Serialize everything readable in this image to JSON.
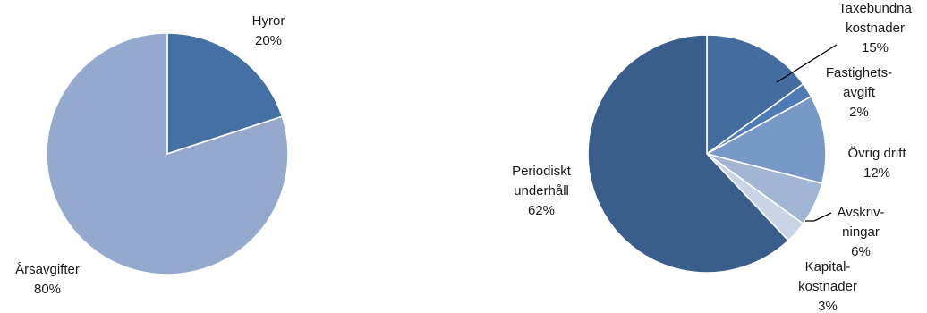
{
  "chart_data": [
    {
      "type": "pie",
      "title": "",
      "slices": [
        {
          "label": [
            "Hyror",
            "20%"
          ],
          "value": 20,
          "color": "#4470a3"
        },
        {
          "label": [
            "Årsavgifter",
            "80%"
          ],
          "value": 80,
          "color": "#95a9cf"
        }
      ]
    },
    {
      "type": "pie",
      "title": "",
      "slices": [
        {
          "label": [
            "Taxebundna",
            "kostnader",
            "15%"
          ],
          "value": 15,
          "color": "#436c9f"
        },
        {
          "label": [
            "Fastighets-",
            "avgift",
            "2%"
          ],
          "value": 2,
          "color": "#4e7bb6"
        },
        {
          "label": [
            "Övrig drift",
            "12%"
          ],
          "value": 12,
          "color": "#7898c8"
        },
        {
          "label": [
            "Avskriv-",
            "ningar",
            "6%"
          ],
          "value": 6,
          "color": "#a3b5d5"
        },
        {
          "label": [
            "Kapital-",
            "kostnader",
            "3%"
          ],
          "value": 3,
          "color": "#c9d3e6"
        },
        {
          "label": [
            "Periodiskt",
            "underhåll",
            "62%"
          ],
          "value": 62,
          "color": "#3a5e8c"
        }
      ]
    }
  ]
}
